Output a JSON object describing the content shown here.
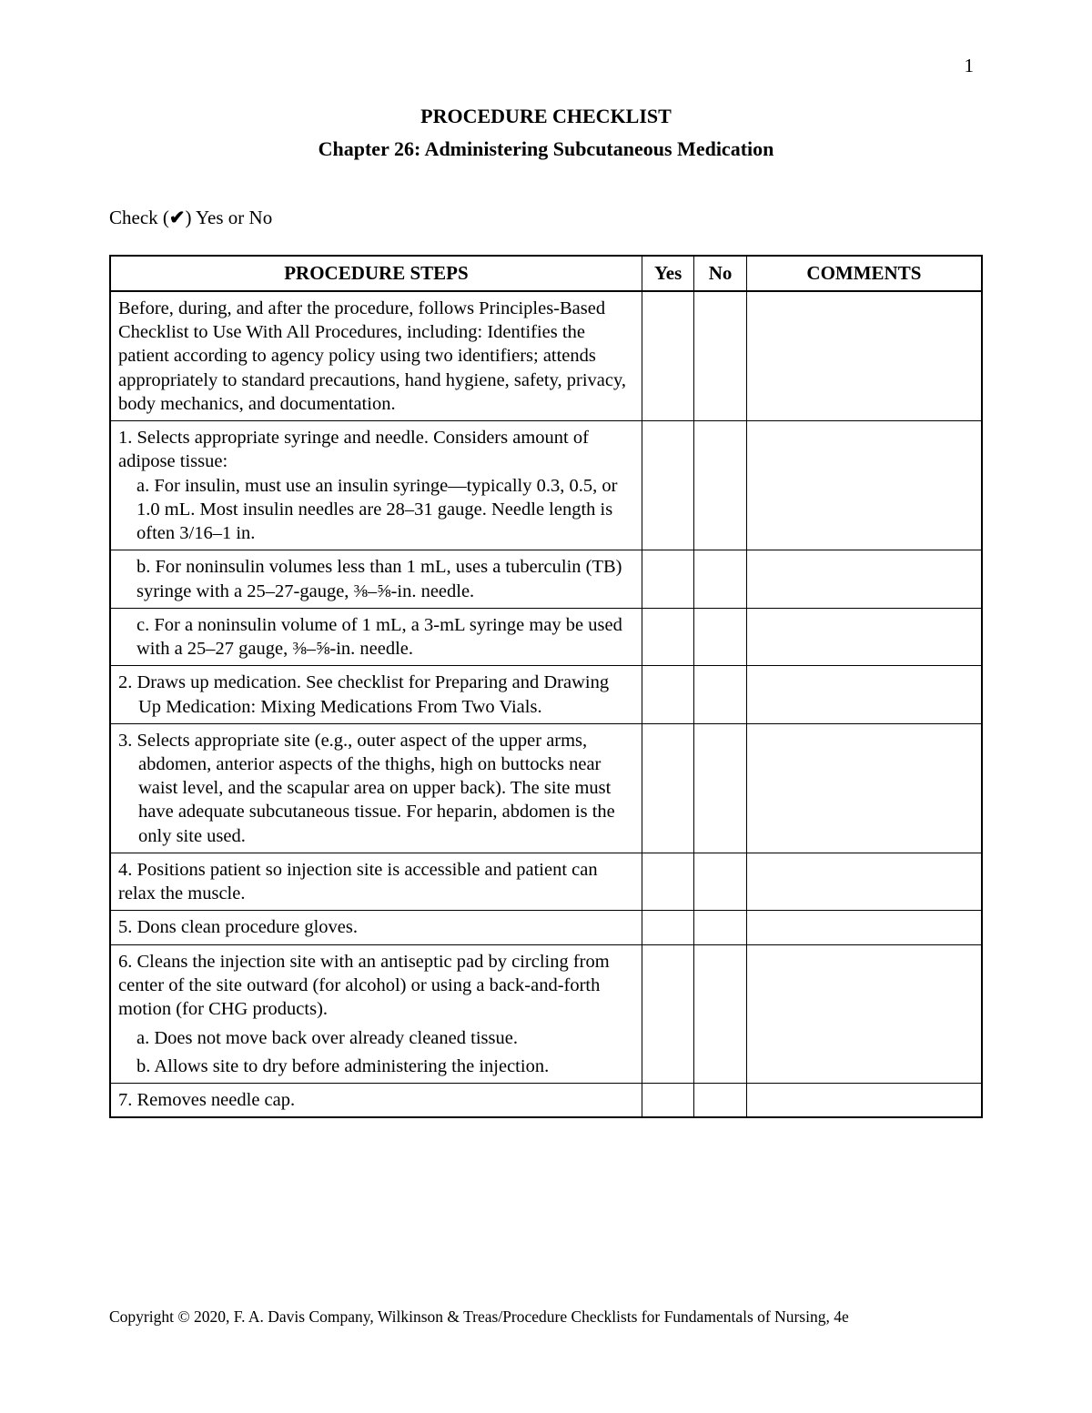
{
  "page_number": "1",
  "title_main": "PROCEDURE CHECKLIST",
  "title_chapter": "Chapter 26: Administering Subcutaneous Medication",
  "check_instruction_prefix": "Check (",
  "check_instruction_mark": "✔",
  "check_instruction_suffix": ") Yes or No",
  "headers": {
    "steps": "PROCEDURE STEPS",
    "yes": "Yes",
    "no": "No",
    "comments": "COMMENTS"
  },
  "rows": [
    {
      "type": "plain",
      "text": "Before, during, and after the procedure, follows Principles-Based Checklist to Use With All Procedures, including: Identifies the patient according to agency policy using two identifiers; attends appropriately to standard precautions, hand hygiene, safety, privacy, body mechanics, and documentation."
    },
    {
      "type": "with_sub",
      "main": "1. Selects appropriate syringe and needle. Considers amount of adipose tissue:",
      "sub": "a.   For insulin, must use an insulin syringe—typically 0.3, 0.5, or 1.0 mL. Most insulin needles are 28–31 gauge. Needle length is often 3/16–1 in."
    },
    {
      "type": "sub_only",
      "sub": "b.   For noninsulin volumes less than 1 mL, uses a tuberculin (TB) syringe with a 25–27-gauge, ⅜–⅝-in. needle."
    },
    {
      "type": "sub_only",
      "sub": "c.   For a noninsulin volume of 1 mL, a 3-mL syringe may be used with a 25–27 gauge, ⅜–⅝-in. needle."
    },
    {
      "type": "numbered",
      "text": "2. Draws up medication. See checklist for Preparing and Drawing Up Medication: Mixing Medications From Two Vials."
    },
    {
      "type": "numbered",
      "text": "3. Selects appropriate site (e.g., outer aspect of the upper arms, abdomen, anterior aspects of the thighs, high on buttocks near waist level, and the scapular area on upper back). The site must have adequate subcutaneous tissue. For heparin, abdomen is the only site used."
    },
    {
      "type": "plain",
      "text": "4. Positions patient so injection site is accessible and patient can relax the muscle."
    },
    {
      "type": "plain",
      "text": "5. Dons clean procedure gloves."
    },
    {
      "type": "with_two_sub",
      "main": "6. Cleans the injection site with an antiseptic pad by circling from center of the site outward (for alcohol) or using a back-and-forth motion (for CHG products).",
      "sub_a": "a. Does not move back over already cleaned tissue.",
      "sub_b": "b. Allows site to dry before administering the injection."
    },
    {
      "type": "plain",
      "text": "7. Removes needle cap."
    }
  ],
  "copyright": "Copyright © 2020, F. A. Davis Company, Wilkinson & Treas/Procedure Checklists for Fundamentals of Nursing, 4e"
}
